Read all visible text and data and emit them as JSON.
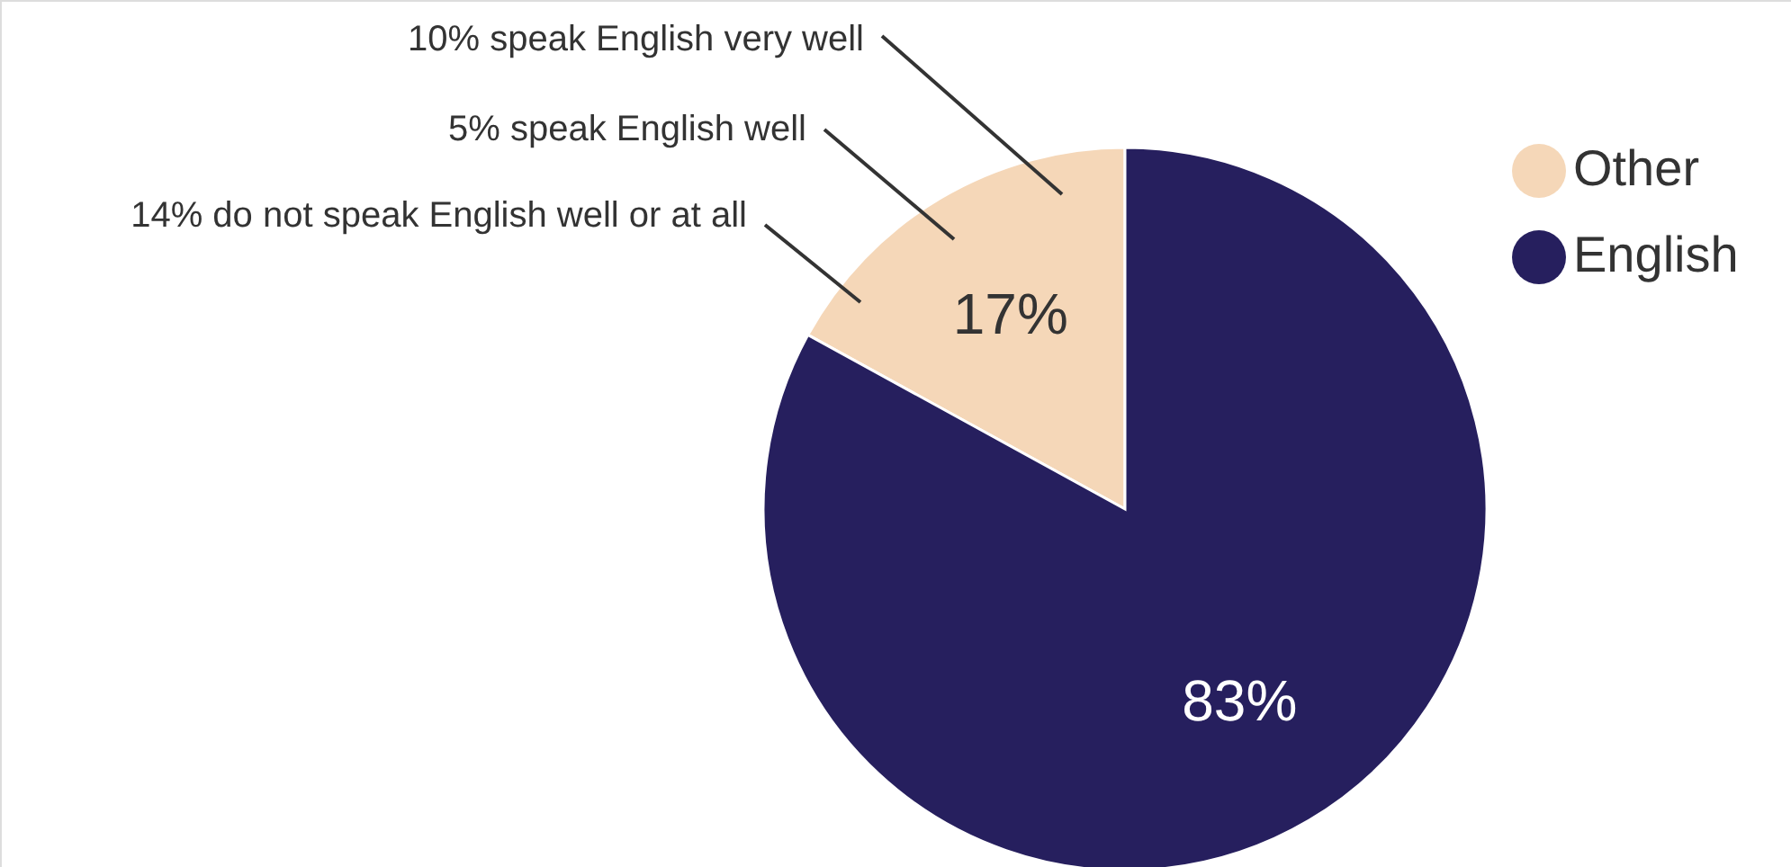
{
  "chart_data": {
    "type": "pie",
    "categories": [
      "Other",
      "English"
    ],
    "values": [
      17,
      83
    ],
    "colors": [
      "#f5d7b8",
      "#261f5e"
    ],
    "value_labels": [
      "17%",
      "83%"
    ],
    "legend": "top right",
    "annotations": [
      "10% speak English very well",
      "5% speak English well",
      "14% do not speak English well or at all"
    ]
  }
}
